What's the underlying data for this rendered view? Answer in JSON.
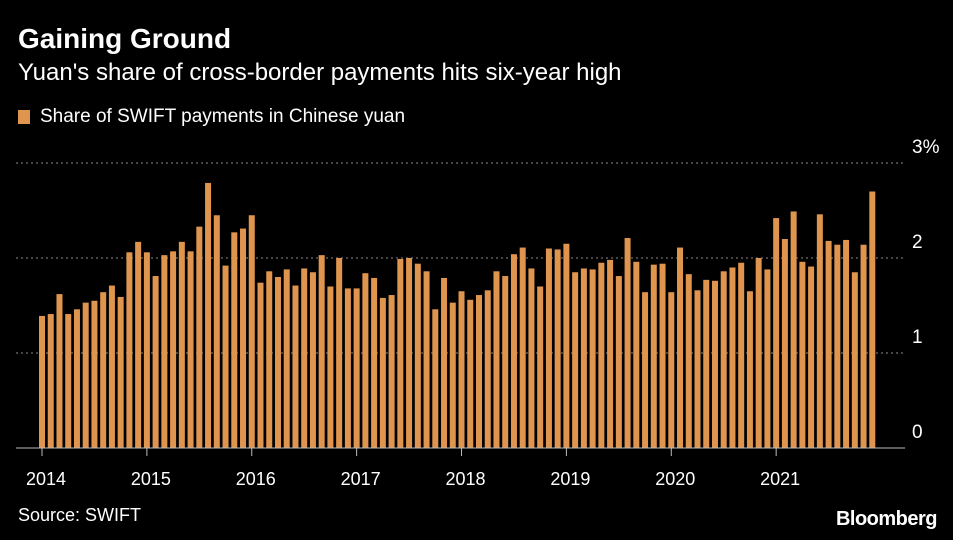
{
  "header": {
    "title": "Gaining Ground",
    "subtitle": "Yuan's share of cross-border payments hits six-year high"
  },
  "footer": {
    "source": "Source: SWIFT",
    "brand": "Bloomberg"
  },
  "colors": {
    "background": "#000000",
    "bar": "#E0954F",
    "text": "#FFFFFF",
    "grid": "#8A8A8A"
  },
  "chart_data": {
    "type": "bar",
    "series": [
      {
        "name": "Share of SWIFT payments in Chinese yuan",
        "values": [
          1.39,
          1.41,
          1.62,
          1.41,
          1.46,
          1.53,
          1.55,
          1.64,
          1.71,
          1.59,
          2.06,
          2.17,
          2.06,
          1.81,
          2.03,
          2.07,
          2.17,
          2.07,
          2.33,
          2.79,
          2.45,
          1.92,
          2.27,
          2.31,
          2.45,
          1.74,
          1.86,
          1.8,
          1.88,
          1.71,
          1.89,
          1.85,
          2.03,
          1.7,
          2.0,
          1.68,
          1.68,
          1.84,
          1.79,
          1.58,
          1.61,
          1.99,
          2.0,
          1.94,
          1.86,
          1.46,
          1.79,
          1.53,
          1.65,
          1.56,
          1.61,
          1.66,
          1.86,
          1.81,
          2.04,
          2.11,
          1.89,
          1.7,
          2.1,
          2.09,
          2.15,
          1.85,
          1.89,
          1.88,
          1.95,
          1.98,
          1.81,
          2.21,
          1.96,
          1.64,
          1.93,
          1.94,
          1.64,
          2.11,
          1.83,
          1.66,
          1.77,
          1.76,
          1.86,
          1.9,
          1.95,
          1.65,
          2.0,
          1.88,
          2.42,
          2.2,
          2.49,
          1.96,
          1.91,
          2.46,
          2.18,
          2.14,
          2.19,
          1.85,
          2.14,
          2.7
        ]
      }
    ],
    "x_start": "2014-01",
    "x_end": "2021-12",
    "x_ticks": [
      "2014",
      "2015",
      "2016",
      "2017",
      "2018",
      "2019",
      "2020",
      "2021"
    ],
    "y_ticks": [
      "0",
      "1",
      "2",
      "3%"
    ],
    "ylim": [
      0,
      3
    ],
    "grid": true,
    "legend_position": "top-left"
  }
}
